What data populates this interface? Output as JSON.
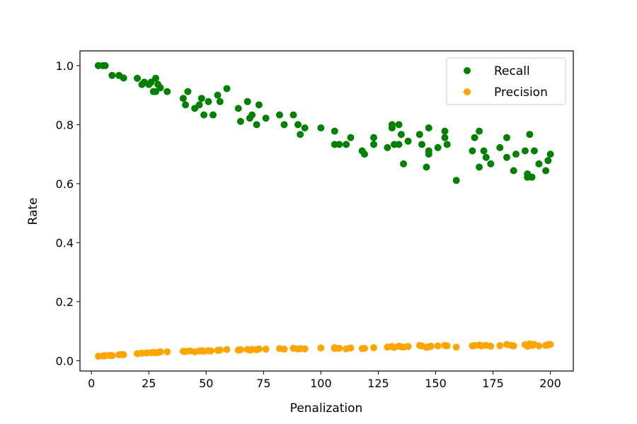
{
  "chart_data": {
    "type": "scatter",
    "title": "",
    "xlabel": "Penalization",
    "ylabel": "Rate",
    "xlim": [
      -5,
      210
    ],
    "ylim": [
      -0.035,
      1.05
    ],
    "xticks": [
      0,
      25,
      50,
      75,
      100,
      125,
      150,
      175,
      200
    ],
    "xtick_labels": [
      "0",
      "25",
      "50",
      "75",
      "100",
      "125",
      "150",
      "175",
      "200"
    ],
    "yticks": [
      0.0,
      0.2,
      0.4,
      0.6,
      0.8,
      1.0
    ],
    "ytick_labels": [
      "0.0",
      "0.2",
      "0.4",
      "0.6",
      "0.8",
      "1.0"
    ],
    "grid": false,
    "legend": {
      "position": "top-right"
    },
    "series": [
      {
        "name": "Recall",
        "color": "#008000",
        "points": [
          [
            3,
            1.0
          ],
          [
            5,
            1.0
          ],
          [
            6,
            1.0
          ],
          [
            9,
            0.967
          ],
          [
            12,
            0.967
          ],
          [
            14,
            0.958
          ],
          [
            20,
            0.957
          ],
          [
            22,
            0.936
          ],
          [
            23,
            0.944
          ],
          [
            25,
            0.936
          ],
          [
            26,
            0.944
          ],
          [
            27,
            0.912
          ],
          [
            28,
            0.957
          ],
          [
            29,
            0.936
          ],
          [
            28,
            0.912
          ],
          [
            30,
            0.925
          ],
          [
            33,
            0.912
          ],
          [
            40,
            0.889
          ],
          [
            41,
            0.867
          ],
          [
            42,
            0.912
          ],
          [
            45,
            0.855
          ],
          [
            47,
            0.867
          ],
          [
            48,
            0.889
          ],
          [
            49,
            0.833
          ],
          [
            51,
            0.878
          ],
          [
            53,
            0.833
          ],
          [
            55,
            0.9
          ],
          [
            56,
            0.878
          ],
          [
            59,
            0.922
          ],
          [
            64,
            0.855
          ],
          [
            65,
            0.811
          ],
          [
            68,
            0.878
          ],
          [
            69,
            0.822
          ],
          [
            70,
            0.833
          ],
          [
            72,
            0.8
          ],
          [
            73,
            0.867
          ],
          [
            76,
            0.822
          ],
          [
            82,
            0.833
          ],
          [
            84,
            0.8
          ],
          [
            88,
            0.833
          ],
          [
            90,
            0.8
          ],
          [
            91,
            0.767
          ],
          [
            93,
            0.789
          ],
          [
            100,
            0.789
          ],
          [
            106,
            0.778
          ],
          [
            106,
            0.733
          ],
          [
            108,
            0.733
          ],
          [
            111,
            0.733
          ],
          [
            113,
            0.756
          ],
          [
            118,
            0.711
          ],
          [
            119,
            0.7
          ],
          [
            123,
            0.733
          ],
          [
            123,
            0.756
          ],
          [
            129,
            0.722
          ],
          [
            131,
            0.8
          ],
          [
            131,
            0.789
          ],
          [
            132,
            0.733
          ],
          [
            134,
            0.8
          ],
          [
            134,
            0.733
          ],
          [
            135,
            0.767
          ],
          [
            136,
            0.667
          ],
          [
            138,
            0.744
          ],
          [
            143,
            0.767
          ],
          [
            144,
            0.733
          ],
          [
            146,
            0.656
          ],
          [
            147,
            0.711
          ],
          [
            147,
            0.7
          ],
          [
            147,
            0.789
          ],
          [
            151,
            0.722
          ],
          [
            154,
            0.778
          ],
          [
            154,
            0.756
          ],
          [
            155,
            0.733
          ],
          [
            159,
            0.611
          ],
          [
            166,
            0.711
          ],
          [
            167,
            0.756
          ],
          [
            169,
            0.656
          ],
          [
            169,
            0.778
          ],
          [
            171,
            0.711
          ],
          [
            172,
            0.689
          ],
          [
            174,
            0.667
          ],
          [
            178,
            0.722
          ],
          [
            181,
            0.689
          ],
          [
            181,
            0.756
          ],
          [
            184,
            0.644
          ],
          [
            185,
            0.7
          ],
          [
            189,
            0.711
          ],
          [
            190,
            0.622
          ],
          [
            190,
            0.633
          ],
          [
            191,
            0.767
          ],
          [
            192,
            0.622
          ],
          [
            193,
            0.711
          ],
          [
            195,
            0.667
          ],
          [
            198,
            0.644
          ],
          [
            199,
            0.678
          ],
          [
            200,
            0.7
          ]
        ]
      },
      {
        "name": "Precision",
        "color": "#ffa500",
        "points": [
          [
            3,
            0.015
          ],
          [
            5,
            0.016
          ],
          [
            6,
            0.017
          ],
          [
            8,
            0.018
          ],
          [
            9,
            0.017
          ],
          [
            12,
            0.02
          ],
          [
            13,
            0.021
          ],
          [
            14,
            0.02
          ],
          [
            20,
            0.024
          ],
          [
            22,
            0.025
          ],
          [
            24,
            0.026
          ],
          [
            26,
            0.027
          ],
          [
            27,
            0.028
          ],
          [
            28,
            0.027
          ],
          [
            29,
            0.028
          ],
          [
            30,
            0.03
          ],
          [
            33,
            0.03
          ],
          [
            40,
            0.032
          ],
          [
            41,
            0.031
          ],
          [
            43,
            0.033
          ],
          [
            45,
            0.03
          ],
          [
            47,
            0.033
          ],
          [
            48,
            0.034
          ],
          [
            49,
            0.032
          ],
          [
            51,
            0.034
          ],
          [
            52,
            0.033
          ],
          [
            55,
            0.035
          ],
          [
            56,
            0.036
          ],
          [
            59,
            0.038
          ],
          [
            64,
            0.036
          ],
          [
            65,
            0.037
          ],
          [
            68,
            0.038
          ],
          [
            69,
            0.036
          ],
          [
            70,
            0.038
          ],
          [
            72,
            0.037
          ],
          [
            73,
            0.04
          ],
          [
            76,
            0.039
          ],
          [
            82,
            0.041
          ],
          [
            84,
            0.039
          ],
          [
            88,
            0.042
          ],
          [
            90,
            0.04
          ],
          [
            91,
            0.041
          ],
          [
            93,
            0.04
          ],
          [
            100,
            0.043
          ],
          [
            106,
            0.044
          ],
          [
            106,
            0.041
          ],
          [
            108,
            0.042
          ],
          [
            111,
            0.04
          ],
          [
            113,
            0.043
          ],
          [
            118,
            0.041
          ],
          [
            119,
            0.042
          ],
          [
            123,
            0.044
          ],
          [
            129,
            0.046
          ],
          [
            131,
            0.048
          ],
          [
            132,
            0.045
          ],
          [
            134,
            0.049
          ],
          [
            135,
            0.047
          ],
          [
            136,
            0.046
          ],
          [
            138,
            0.048
          ],
          [
            143,
            0.052
          ],
          [
            144,
            0.05
          ],
          [
            146,
            0.045
          ],
          [
            147,
            0.047
          ],
          [
            148,
            0.049
          ],
          [
            151,
            0.05
          ],
          [
            154,
            0.052
          ],
          [
            155,
            0.05
          ],
          [
            159,
            0.046
          ],
          [
            166,
            0.05
          ],
          [
            167,
            0.051
          ],
          [
            169,
            0.053
          ],
          [
            170,
            0.05
          ],
          [
            172,
            0.052
          ],
          [
            174,
            0.049
          ],
          [
            178,
            0.051
          ],
          [
            181,
            0.055
          ],
          [
            183,
            0.052
          ],
          [
            184,
            0.05
          ],
          [
            189,
            0.054
          ],
          [
            190,
            0.049
          ],
          [
            191,
            0.057
          ],
          [
            192,
            0.052
          ],
          [
            193,
            0.055
          ],
          [
            195,
            0.05
          ],
          [
            198,
            0.052
          ],
          [
            199,
            0.054
          ],
          [
            200,
            0.055
          ]
        ]
      }
    ]
  }
}
